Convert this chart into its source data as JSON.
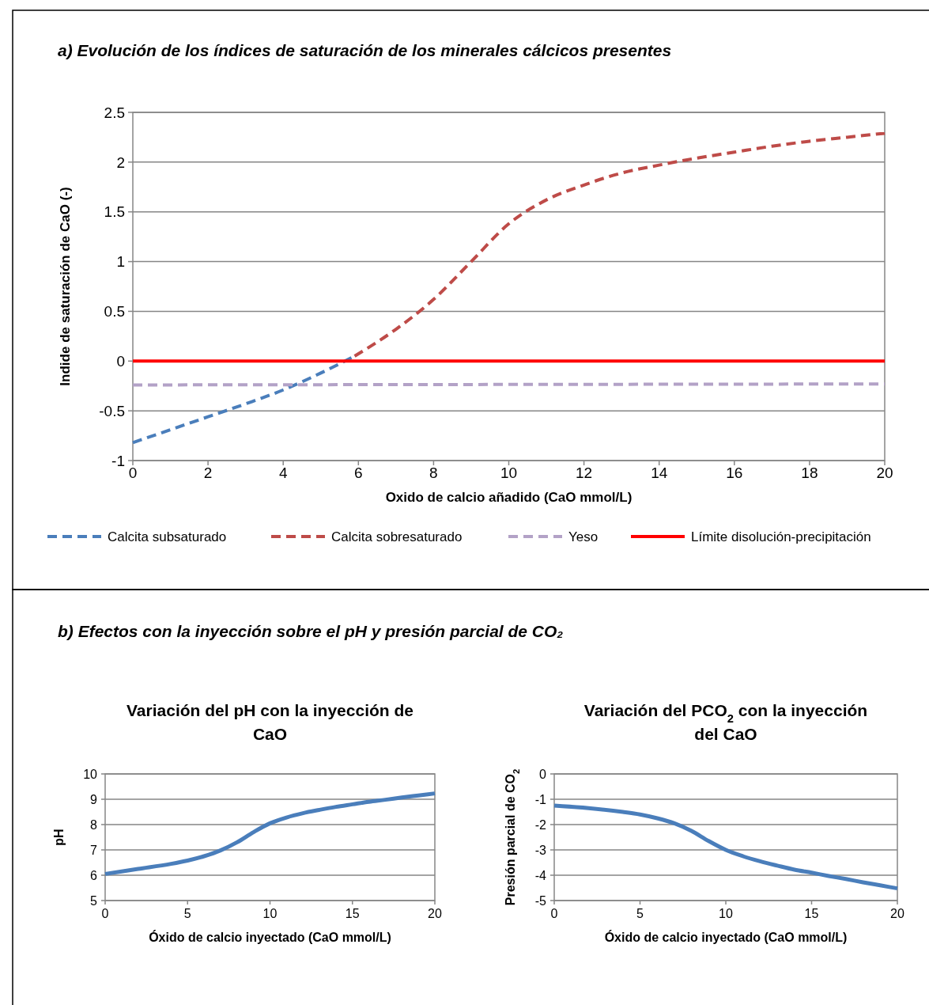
{
  "chart_data": [
    {
      "type": "line",
      "title": "a) Evolución de los índices de saturación de los minerales cálcicos presentes",
      "xlabel": "Oxido de calcio añadido (CaO mmol/L)",
      "ylabel": "Indide de saturación de CaO (-)",
      "xlim": [
        0,
        20
      ],
      "xticks": [
        0,
        2,
        4,
        6,
        8,
        10,
        12,
        14,
        16,
        18,
        20
      ],
      "ylim": [
        -1,
        2.5
      ],
      "yticks": [
        -1,
        -0.5,
        0,
        0.5,
        1,
        1.5,
        2,
        2.5
      ],
      "grid": "y",
      "legend": "bottom",
      "marker": "none",
      "series": [
        {
          "name": "Calcita subsaturado",
          "color": "#4a7ebb",
          "line_style": "dashed",
          "x": [
            0,
            1,
            2,
            3,
            4,
            5,
            5.9
          ],
          "values": [
            -0.82,
            -0.69,
            -0.56,
            -0.43,
            -0.29,
            -0.12,
            0.05
          ]
        },
        {
          "name": "Calcita sobresaturado",
          "color": "#be4b48",
          "line_style": "dashed",
          "x": [
            5.9,
            7,
            8,
            9,
            10,
            11,
            12,
            13,
            14,
            15,
            16,
            17,
            18,
            19,
            20
          ],
          "values": [
            0.05,
            0.32,
            0.62,
            1.0,
            1.38,
            1.62,
            1.77,
            1.89,
            1.97,
            2.04,
            2.1,
            2.16,
            2.21,
            2.25,
            2.29
          ]
        },
        {
          "name": "Yeso",
          "color": "#b3a2c7",
          "line_style": "dashed",
          "x": [
            0,
            10,
            20
          ],
          "values": [
            -0.24,
            -0.235,
            -0.23
          ]
        },
        {
          "name": "Límite disolución-precipitación",
          "color": "#ff0000",
          "line_style": "solid",
          "x": [
            0,
            20
          ],
          "values": [
            0,
            0
          ]
        }
      ]
    },
    {
      "type": "line",
      "title": "Variación del pH con la inyección de CaO",
      "annotations": [
        "b) Efectos con la inyección sobre el pH y presión parcial de CO₂"
      ],
      "xlabel": "Óxido de calcio inyectado (CaO mmol/L)",
      "ylabel": "pH",
      "xlim": [
        0,
        20
      ],
      "xticks": [
        0,
        5,
        10,
        15,
        20
      ],
      "ylim": [
        5,
        10
      ],
      "yticks": [
        5,
        6,
        7,
        8,
        9,
        10
      ],
      "grid": "y",
      "marker": "none",
      "line_style": "solid",
      "series": [
        {
          "color": "#4a7ebb",
          "x": [
            0,
            2,
            4,
            5,
            6,
            7,
            8,
            9,
            10,
            11,
            12,
            13,
            14,
            15,
            16,
            17,
            18,
            19,
            20
          ],
          "values": [
            6.05,
            6.25,
            6.45,
            6.58,
            6.75,
            6.98,
            7.3,
            7.7,
            8.05,
            8.28,
            8.45,
            8.58,
            8.7,
            8.8,
            8.9,
            8.98,
            9.07,
            9.15,
            9.23
          ]
        }
      ]
    },
    {
      "type": "line",
      "title": "Variación del PCO$_{2}$ con la inyección del CaO",
      "xlabel": "Óxido de calcio inyectado (CaO mmol/L)",
      "ylabel": "Presión parcial de CO$_{2}$",
      "xlim": [
        0,
        20
      ],
      "xticks": [
        0,
        5,
        10,
        15,
        20
      ],
      "ylim": [
        -5,
        0
      ],
      "yticks": [
        -5,
        -4,
        -3,
        -2,
        -1,
        0
      ],
      "grid": "y",
      "marker": "none",
      "line_style": "solid",
      "series": [
        {
          "color": "#4a7ebb",
          "x": [
            0,
            2,
            4,
            5,
            6,
            7,
            8,
            9,
            10,
            11,
            12,
            13,
            14,
            15,
            16,
            17,
            18,
            19,
            20
          ],
          "values": [
            -1.25,
            -1.35,
            -1.5,
            -1.6,
            -1.75,
            -1.95,
            -2.25,
            -2.65,
            -3.0,
            -3.25,
            -3.45,
            -3.62,
            -3.78,
            -3.9,
            -4.03,
            -4.15,
            -4.28,
            -4.4,
            -4.52
          ]
        }
      ]
    }
  ]
}
